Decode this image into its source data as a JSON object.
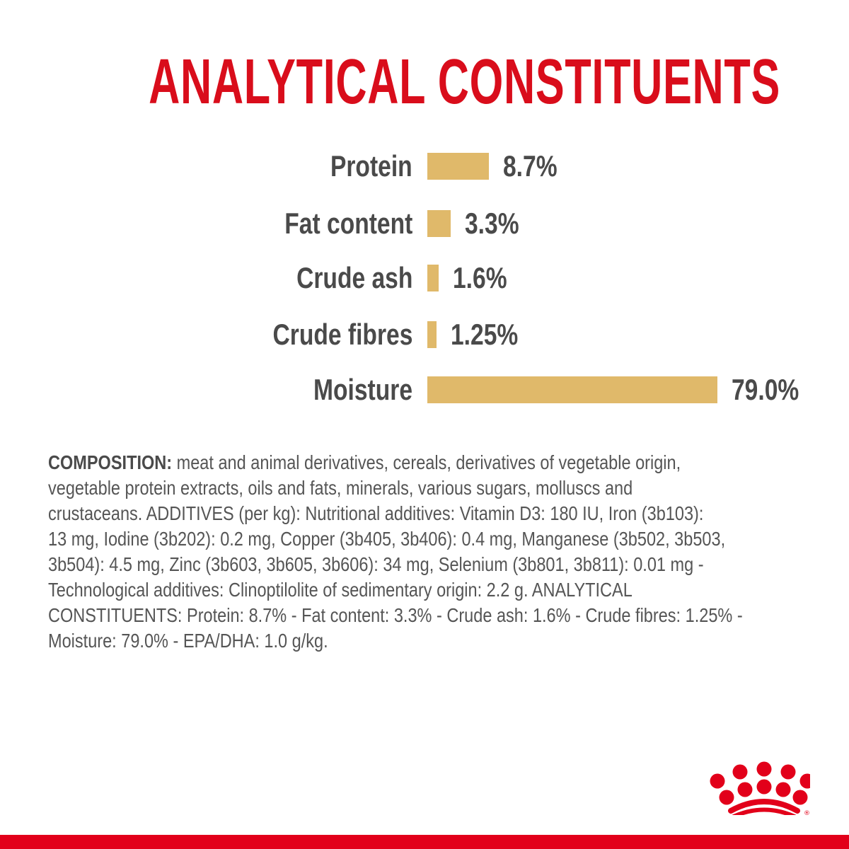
{
  "title": "ANALYTICAL CONSTITUENTS",
  "colors": {
    "brand_red": "#e2001a",
    "bar_gold": "#e0b96a",
    "text_gray": "#4a4a4a"
  },
  "chart_data": {
    "type": "bar",
    "orientation": "horizontal",
    "title": "ANALYTICAL CONSTITUENTS",
    "categories": [
      "Protein",
      "Fat content",
      "Crude ash",
      "Crude fibres",
      "Moisture"
    ],
    "values": [
      8.7,
      3.3,
      1.6,
      1.25,
      79.0
    ],
    "value_labels": [
      "8.7%",
      "3.3%",
      "1.6%",
      "1.25%",
      "79.0%"
    ],
    "unit": "%",
    "grid": false,
    "legend": "none"
  },
  "composition": {
    "heading": "COMPOSITION:",
    "lines": [
      " meat and animal derivatives, cereals, derivatives of vegetable origin,",
      "vegetable protein extracts, oils and fats, minerals, various sugars, molluscs and",
      "crustaceans. ADDITIVES (per kg): Nutritional additives: Vitamin D3: 180 IU, Iron (3b103):",
      "13 mg, Iodine (3b202): 0.2 mg, Copper (3b405, 3b406): 0.4 mg, Manganese (3b502, 3b503,",
      "3b504): 4.5 mg, Zinc (3b603, 3b605, 3b606): 34 mg, Selenium (3b801, 3b811): 0.01 mg -",
      "Technological additives: Clinoptilolite of sedimentary origin: 2.2 g. ANALYTICAL",
      "CONSTITUENTS: Protein: 8.7% - Fat content: 3.3% - Crude ash: 1.6% - Crude fibres: 1.25% -",
      "Moisture: 79.0% - EPA/DHA: 1.0 g/kg."
    ]
  },
  "logo": {
    "name": "royal-canin-crown-logo",
    "mark": "®"
  }
}
